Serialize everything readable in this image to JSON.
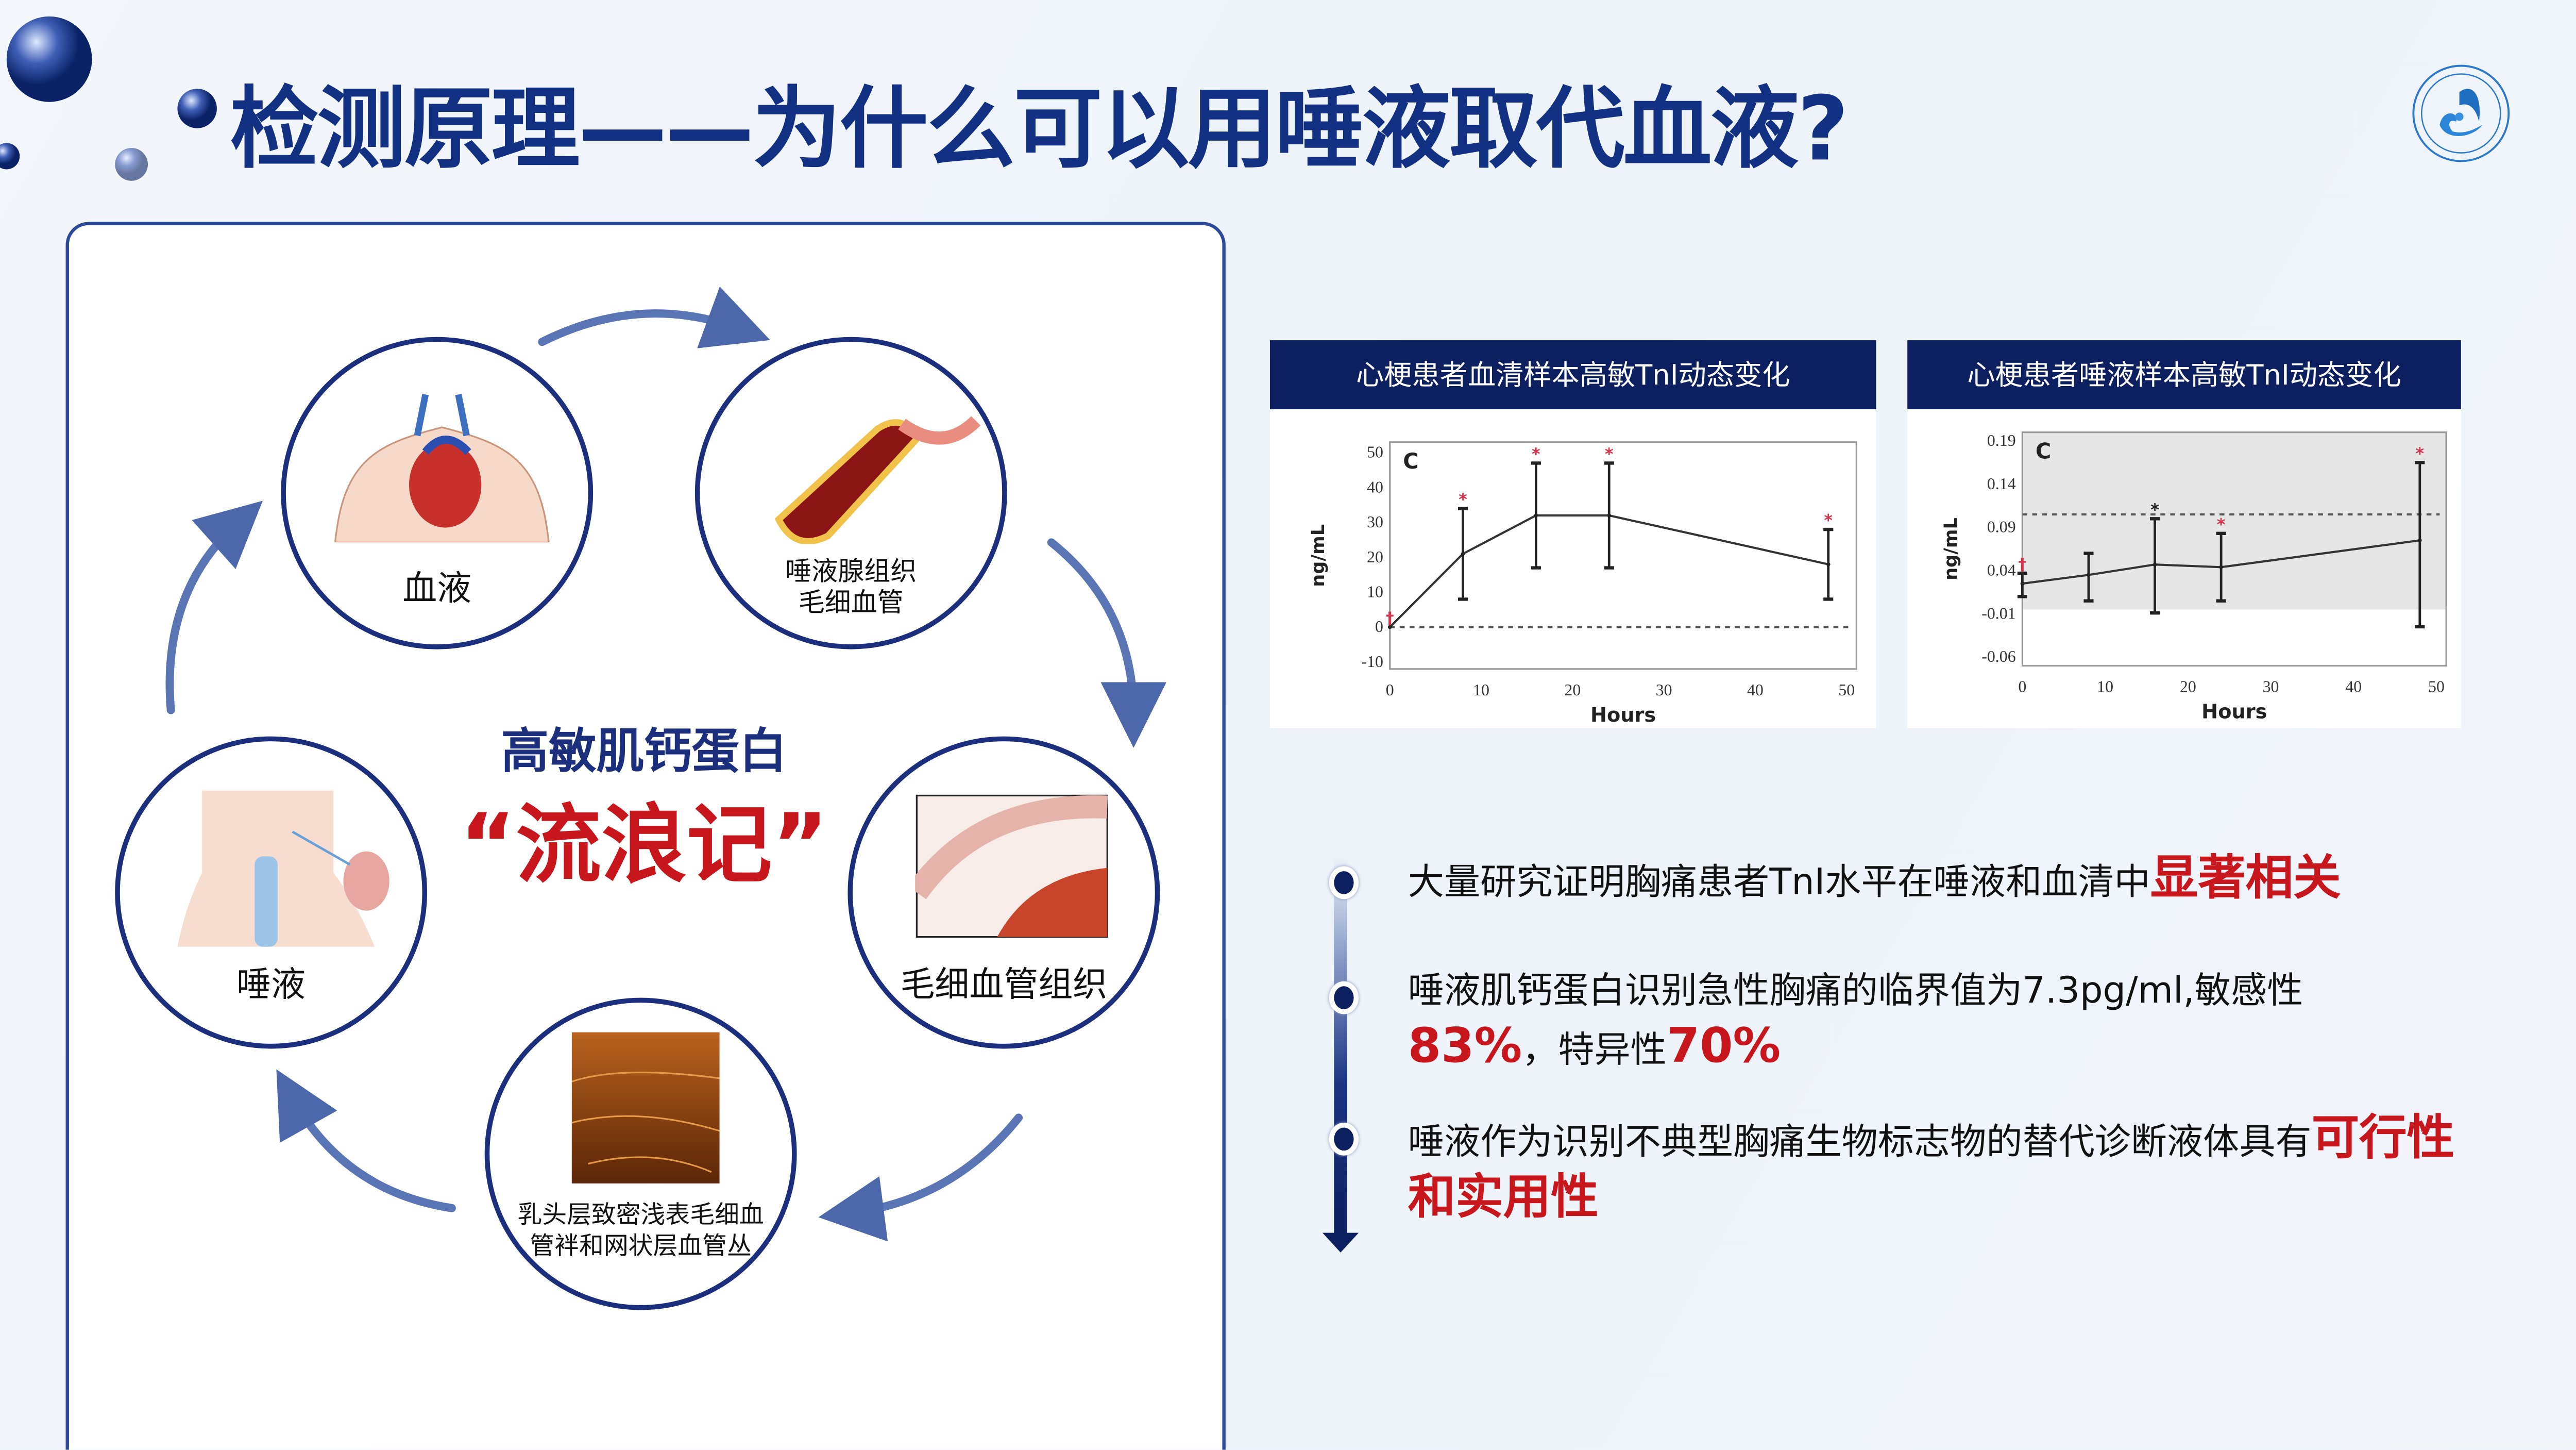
{
  "title": "检测原理——为什么可以用唾液取代血液?",
  "logo": {
    "ring_text": "SLIVA AND HEART BRING TO FUTURE",
    "bottom_text": "唾心未来"
  },
  "cycle": {
    "center_title": "高敏肌钙蛋白",
    "center_subtitle": "“流浪记”",
    "nodes": [
      {
        "label": "血液",
        "icon": "heart-anatomy"
      },
      {
        "label_line1": "唾液腺组织",
        "label_line2": "毛细血管",
        "icon": "blood-vessel"
      },
      {
        "label": "毛细血管组织",
        "icon": "tissue-section"
      },
      {
        "label_line1": "乳头层致密浅表毛细血",
        "label_line2": "管袢和网状层血管丛",
        "icon": "capillary-micrograph"
      },
      {
        "label": "唾液",
        "icon": "neck-thyroid"
      }
    ]
  },
  "charts": [
    {
      "header": "心梗患者血清样本高敏TnI动态变化"
    },
    {
      "header": "心梗患者唾液样本高敏TnI动态变化"
    }
  ],
  "chart_data": [
    {
      "type": "line",
      "panel_label": "C",
      "xlabel": "Hours",
      "ylabel": "ng/mL",
      "xlim": [
        0,
        50
      ],
      "ylim": [
        -12,
        53
      ],
      "xticks": [
        0,
        10,
        20,
        30,
        40,
        50
      ],
      "yticks": [
        -10,
        0,
        10,
        20,
        30,
        40,
        50
      ],
      "x": [
        0,
        8,
        16,
        24,
        48
      ],
      "y": [
        0,
        21,
        32,
        32,
        18
      ],
      "error_low": [
        0,
        8,
        17,
        17,
        8
      ],
      "error_high": [
        0,
        34,
        47,
        47,
        28
      ],
      "markers": [
        "†",
        "*",
        "*",
        "*",
        "*"
      ],
      "reference_line": 0,
      "marker_color": "#d6334a"
    },
    {
      "type": "line",
      "panel_label": "C",
      "xlabel": "Hours",
      "ylabel": "ng/mL",
      "xlim": [
        0,
        50
      ],
      "ylim": [
        -0.07,
        0.2
      ],
      "xticks": [
        0,
        10,
        20,
        30,
        40,
        50
      ],
      "yticks": [
        -0.06,
        -0.01,
        0.04,
        0.09,
        0.14,
        0.19
      ],
      "ytick_labels": [
        "-0.06",
        "-0.01",
        "0.04",
        "0.09",
        "0.14",
        "0.19"
      ],
      "x": [
        0,
        8,
        16,
        24,
        48
      ],
      "y": [
        0.025,
        0.035,
        0.047,
        0.044,
        0.075
      ],
      "error_low": [
        0.01,
        0.005,
        -0.009,
        0.005,
        -0.025
      ],
      "error_high": [
        0.037,
        0.06,
        0.1,
        0.083,
        0.165
      ],
      "markers": [
        "†",
        "",
        "*",
        "*",
        "*"
      ],
      "marker_colors": [
        "#d6334a",
        "",
        "#222222",
        "#d6334a",
        "#d6334a"
      ],
      "reference_line": 0.105,
      "shaded_band": [
        -0.005,
        0.2
      ]
    }
  ],
  "bullets": [
    {
      "text": "大量研究证明胸痛患者TnI水平在唾液和血清中",
      "highlight": "显著相关"
    },
    {
      "text": "唾液肌钙蛋白识别急性胸痛的临界值为7.3pg/ml,敏感性",
      "highlight": "83%",
      "text2": "，特异性",
      "highlight2": "70%"
    },
    {
      "text": "唾液作为识别不典型胸痛生物标志物的替代诊断液体具有",
      "highlight": "可行性和实用性"
    }
  ],
  "colors": {
    "navy": "#0c1f5e",
    "title_blue": "#123182",
    "accent_red": "#c8161d"
  }
}
